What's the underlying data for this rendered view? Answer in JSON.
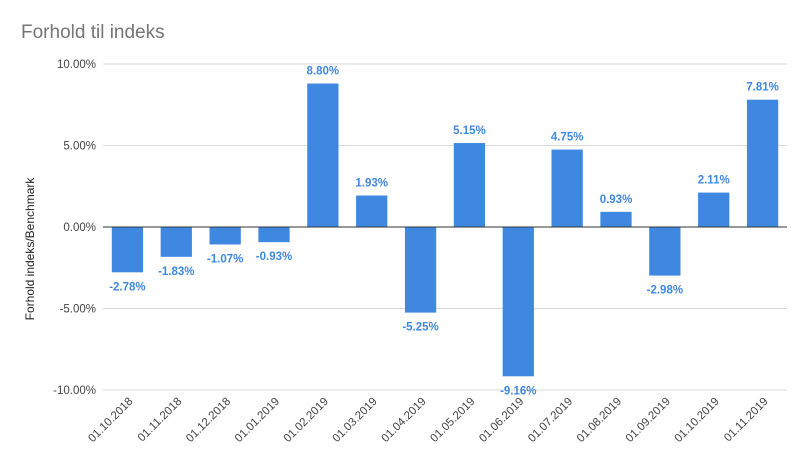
{
  "chart_data": {
    "type": "bar",
    "title": "Forhold til indeks",
    "ylabel": "Forhold indeks/Benchmark",
    "xlabel": "",
    "ylim": [
      -10,
      10
    ],
    "yticks": [
      10,
      5,
      0,
      -5,
      -10
    ],
    "ytick_labels": [
      "10.00%",
      "5.00%",
      "0.00%",
      "-5.00%",
      "-10.00%"
    ],
    "categories": [
      "01.10.2018",
      "01.11.2018",
      "01.12.2018",
      "01.01.2019",
      "01.02.2019",
      "01.03.2019",
      "01.04.2019",
      "01.05.2019",
      "01.06.2019",
      "01.07.2019",
      "01.08.2019",
      "01.09.2019",
      "01.10.2019",
      "01.11.2019"
    ],
    "values": [
      -2.78,
      -1.83,
      -1.07,
      -0.93,
      8.8,
      1.93,
      -5.25,
      5.15,
      -9.16,
      4.75,
      0.93,
      -2.98,
      2.11,
      7.81
    ],
    "data_labels": [
      "-2.78%",
      "-1.83%",
      "-1.07%",
      "-0.93%",
      "8.80%",
      "1.93%",
      "-5.25%",
      "5.15%",
      "-9.16%",
      "4.75%",
      "0.93%",
      "-2.98%",
      "2.11%",
      "7.81%"
    ],
    "grid": true,
    "legend": "none",
    "bar_color": "#3f88e2",
    "label_color": "#3f88e2"
  }
}
